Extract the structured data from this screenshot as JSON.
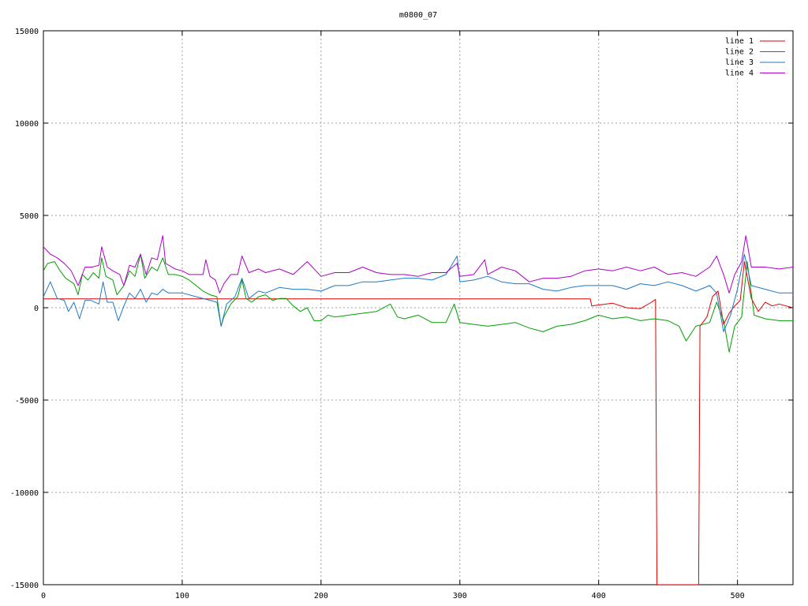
{
  "chart_data": {
    "type": "line",
    "title": "m0800_07",
    "xlabel": "",
    "ylabel": "",
    "xlim": [
      0,
      540
    ],
    "ylim": [
      -15000,
      15000
    ],
    "xticks": [
      0,
      100,
      200,
      300,
      400,
      500
    ],
    "yticks": [
      -15000,
      -10000,
      -5000,
      0,
      5000,
      10000,
      15000
    ],
    "grid": true,
    "legend_position": "top-right",
    "series": [
      {
        "name": "line 1",
        "color": "#e00000",
        "points": [
          [
            0,
            480
          ],
          [
            100,
            480
          ],
          [
            200,
            480
          ],
          [
            300,
            480
          ],
          [
            394,
            480
          ],
          [
            395,
            100
          ],
          [
            400,
            150
          ],
          [
            410,
            250
          ],
          [
            420,
            0
          ],
          [
            430,
            -50
          ],
          [
            438,
            300
          ],
          [
            441,
            450
          ],
          [
            442,
            -15000
          ],
          [
            472,
            -15000
          ],
          [
            473,
            -1000
          ],
          [
            478,
            -500
          ],
          [
            482,
            600
          ],
          [
            486,
            900
          ],
          [
            490,
            -900
          ],
          [
            494,
            -300
          ],
          [
            498,
            100
          ],
          [
            502,
            400
          ],
          [
            505,
            2500
          ],
          [
            510,
            500
          ],
          [
            515,
            -200
          ],
          [
            520,
            300
          ],
          [
            525,
            100
          ],
          [
            530,
            200
          ],
          [
            535,
            100
          ],
          [
            540,
            0
          ]
        ]
      },
      {
        "name": "line 2",
        "color": "#00a000",
        "points": [
          [
            0,
            2000
          ],
          [
            3,
            2400
          ],
          [
            8,
            2500
          ],
          [
            12,
            2000
          ],
          [
            16,
            1600
          ],
          [
            22,
            1300
          ],
          [
            25,
            700
          ],
          [
            28,
            1800
          ],
          [
            32,
            1500
          ],
          [
            36,
            1900
          ],
          [
            40,
            1600
          ],
          [
            42,
            2700
          ],
          [
            45,
            1700
          ],
          [
            50,
            1500
          ],
          [
            53,
            700
          ],
          [
            58,
            1200
          ],
          [
            62,
            2000
          ],
          [
            66,
            1700
          ],
          [
            70,
            2900
          ],
          [
            73,
            1600
          ],
          [
            78,
            2200
          ],
          [
            82,
            2000
          ],
          [
            86,
            2700
          ],
          [
            90,
            1800
          ],
          [
            95,
            1800
          ],
          [
            100,
            1700
          ],
          [
            105,
            1500
          ],
          [
            110,
            1200
          ],
          [
            115,
            900
          ],
          [
            120,
            700
          ],
          [
            125,
            600
          ],
          [
            128,
            -1000
          ],
          [
            130,
            -500
          ],
          [
            135,
            200
          ],
          [
            140,
            600
          ],
          [
            143,
            1500
          ],
          [
            146,
            500
          ],
          [
            150,
            300
          ],
          [
            155,
            600
          ],
          [
            160,
            700
          ],
          [
            165,
            400
          ],
          [
            170,
            500
          ],
          [
            175,
            500
          ],
          [
            180,
            100
          ],
          [
            185,
            -200
          ],
          [
            190,
            0
          ],
          [
            195,
            -700
          ],
          [
            200,
            -700
          ],
          [
            205,
            -400
          ],
          [
            210,
            -500
          ],
          [
            220,
            -400
          ],
          [
            230,
            -300
          ],
          [
            240,
            -200
          ],
          [
            250,
            200
          ],
          [
            255,
            -500
          ],
          [
            260,
            -600
          ],
          [
            270,
            -400
          ],
          [
            280,
            -800
          ],
          [
            290,
            -800
          ],
          [
            296,
            200
          ],
          [
            300,
            -800
          ],
          [
            310,
            -900
          ],
          [
            320,
            -1000
          ],
          [
            330,
            -900
          ],
          [
            340,
            -800
          ],
          [
            350,
            -1100
          ],
          [
            360,
            -1300
          ],
          [
            370,
            -1000
          ],
          [
            380,
            -900
          ],
          [
            390,
            -700
          ],
          [
            400,
            -400
          ],
          [
            410,
            -600
          ],
          [
            420,
            -500
          ],
          [
            430,
            -700
          ],
          [
            440,
            -600
          ],
          [
            450,
            -700
          ],
          [
            458,
            -1000
          ],
          [
            463,
            -1800
          ],
          [
            470,
            -1000
          ],
          [
            480,
            -800
          ],
          [
            485,
            300
          ],
          [
            490,
            -700
          ],
          [
            494,
            -2400
          ],
          [
            498,
            -1000
          ],
          [
            503,
            -500
          ],
          [
            507,
            2500
          ],
          [
            512,
            -400
          ],
          [
            520,
            -600
          ],
          [
            530,
            -700
          ],
          [
            540,
            -700
          ]
        ]
      },
      {
        "name": "line 3",
        "color": "#1e78c8",
        "points": [
          [
            0,
            600
          ],
          [
            5,
            1400
          ],
          [
            10,
            500
          ],
          [
            15,
            400
          ],
          [
            18,
            -200
          ],
          [
            22,
            300
          ],
          [
            26,
            -600
          ],
          [
            30,
            400
          ],
          [
            34,
            400
          ],
          [
            40,
            200
          ],
          [
            43,
            1400
          ],
          [
            46,
            300
          ],
          [
            50,
            300
          ],
          [
            54,
            -700
          ],
          [
            58,
            100
          ],
          [
            62,
            800
          ],
          [
            66,
            500
          ],
          [
            70,
            1000
          ],
          [
            74,
            300
          ],
          [
            78,
            800
          ],
          [
            82,
            700
          ],
          [
            86,
            1000
          ],
          [
            90,
            800
          ],
          [
            100,
            800
          ],
          [
            110,
            600
          ],
          [
            120,
            400
          ],
          [
            125,
            300
          ],
          [
            128,
            -1000
          ],
          [
            132,
            200
          ],
          [
            138,
            600
          ],
          [
            143,
            1600
          ],
          [
            148,
            500
          ],
          [
            155,
            900
          ],
          [
            160,
            800
          ],
          [
            170,
            1100
          ],
          [
            180,
            1000
          ],
          [
            190,
            1000
          ],
          [
            200,
            900
          ],
          [
            210,
            1200
          ],
          [
            220,
            1200
          ],
          [
            230,
            1400
          ],
          [
            240,
            1400
          ],
          [
            250,
            1500
          ],
          [
            260,
            1600
          ],
          [
            270,
            1600
          ],
          [
            280,
            1500
          ],
          [
            290,
            1800
          ],
          [
            298,
            2800
          ],
          [
            300,
            1400
          ],
          [
            310,
            1500
          ],
          [
            320,
            1700
          ],
          [
            330,
            1400
          ],
          [
            340,
            1300
          ],
          [
            350,
            1300
          ],
          [
            360,
            1000
          ],
          [
            370,
            900
          ],
          [
            380,
            1100
          ],
          [
            390,
            1200
          ],
          [
            400,
            1200
          ],
          [
            410,
            1200
          ],
          [
            420,
            1000
          ],
          [
            430,
            1300
          ],
          [
            440,
            1200
          ],
          [
            450,
            1400
          ],
          [
            460,
            1200
          ],
          [
            470,
            900
          ],
          [
            480,
            1200
          ],
          [
            485,
            800
          ],
          [
            490,
            -1300
          ],
          [
            495,
            -400
          ],
          [
            500,
            1000
          ],
          [
            505,
            2900
          ],
          [
            510,
            1200
          ],
          [
            520,
            1000
          ],
          [
            530,
            800
          ],
          [
            540,
            800
          ]
        ]
      },
      {
        "name": "line 4",
        "color": "#b000c8",
        "points": [
          [
            0,
            3300
          ],
          [
            5,
            2900
          ],
          [
            10,
            2700
          ],
          [
            15,
            2400
          ],
          [
            20,
            2000
          ],
          [
            25,
            1200
          ],
          [
            30,
            2200
          ],
          [
            35,
            2200
          ],
          [
            40,
            2300
          ],
          [
            42,
            3300
          ],
          [
            46,
            2200
          ],
          [
            50,
            2000
          ],
          [
            55,
            1800
          ],
          [
            58,
            1200
          ],
          [
            62,
            2300
          ],
          [
            66,
            2200
          ],
          [
            70,
            2900
          ],
          [
            74,
            1800
          ],
          [
            78,
            2700
          ],
          [
            82,
            2600
          ],
          [
            86,
            3900
          ],
          [
            88,
            2400
          ],
          [
            95,
            2100
          ],
          [
            100,
            2000
          ],
          [
            105,
            1800
          ],
          [
            110,
            1800
          ],
          [
            115,
            1800
          ],
          [
            117,
            2600
          ],
          [
            120,
            1700
          ],
          [
            124,
            1500
          ],
          [
            127,
            800
          ],
          [
            130,
            1300
          ],
          [
            135,
            1800
          ],
          [
            140,
            1800
          ],
          [
            143,
            2800
          ],
          [
            148,
            1900
          ],
          [
            155,
            2100
          ],
          [
            160,
            1900
          ],
          [
            170,
            2100
          ],
          [
            180,
            1800
          ],
          [
            190,
            2500
          ],
          [
            200,
            1700
          ],
          [
            210,
            1900
          ],
          [
            220,
            1900
          ],
          [
            230,
            2200
          ],
          [
            240,
            1900
          ],
          [
            250,
            1800
          ],
          [
            260,
            1800
          ],
          [
            270,
            1700
          ],
          [
            280,
            1900
          ],
          [
            290,
            1900
          ],
          [
            298,
            2400
          ],
          [
            300,
            1700
          ],
          [
            310,
            1800
          ],
          [
            318,
            2600
          ],
          [
            320,
            1800
          ],
          [
            330,
            2200
          ],
          [
            340,
            2000
          ],
          [
            350,
            1400
          ],
          [
            360,
            1600
          ],
          [
            370,
            1600
          ],
          [
            380,
            1700
          ],
          [
            390,
            2000
          ],
          [
            400,
            2100
          ],
          [
            410,
            2000
          ],
          [
            420,
            2200
          ],
          [
            430,
            2000
          ],
          [
            440,
            2200
          ],
          [
            450,
            1800
          ],
          [
            460,
            1900
          ],
          [
            470,
            1700
          ],
          [
            480,
            2200
          ],
          [
            485,
            2800
          ],
          [
            490,
            1800
          ],
          [
            494,
            800
          ],
          [
            498,
            1800
          ],
          [
            503,
            2500
          ],
          [
            506,
            3900
          ],
          [
            510,
            2200
          ],
          [
            520,
            2200
          ],
          [
            530,
            2100
          ],
          [
            540,
            2200
          ]
        ]
      }
    ]
  }
}
